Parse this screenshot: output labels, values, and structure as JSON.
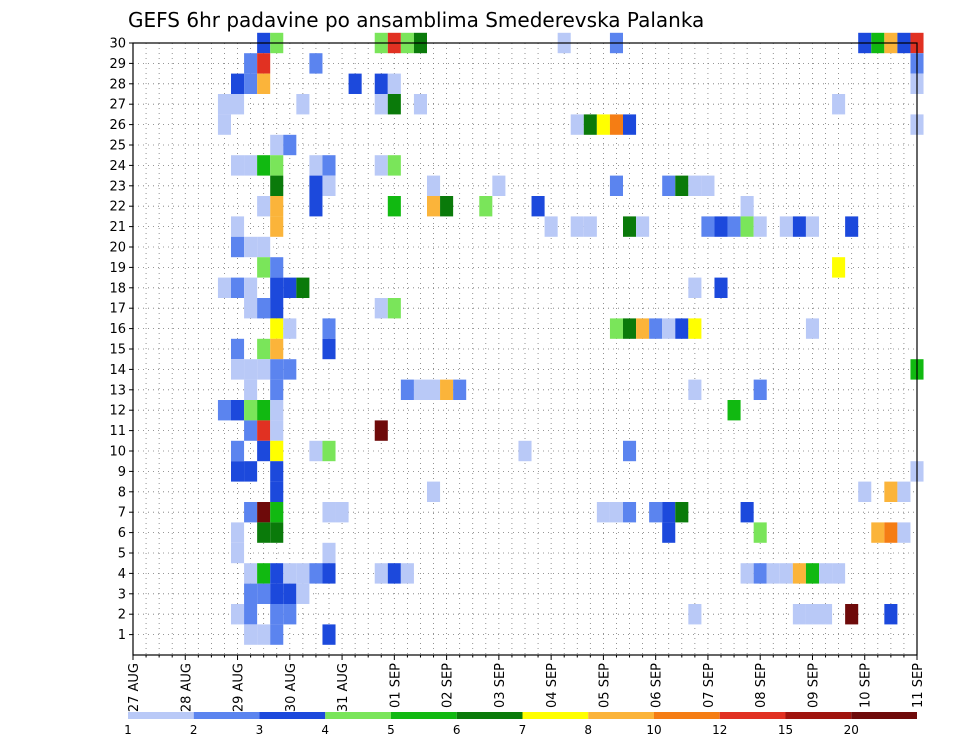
{
  "chart_data": {
    "type": "heatmap",
    "title": "GEFS 6hr padavine po ansamblima Smederevska Palanka",
    "xlabel": "",
    "ylabel": "",
    "x_tick_labels": [
      "27 AUG",
      "28 AUG",
      "29 AUG",
      "30 AUG",
      "31 AUG",
      "01 SEP",
      "02 SEP",
      "03 SEP",
      "04 SEP",
      "05 SEP",
      "06 SEP",
      "07 SEP",
      "08 SEP",
      "09 SEP",
      "10 SEP",
      "11 SEP"
    ],
    "x_unit": "6-hour step (4 per day), day 0 = 27 AUG",
    "y_tick_labels": [
      "1",
      "2",
      "3",
      "4",
      "5",
      "6",
      "7",
      "8",
      "9",
      "10",
      "11",
      "12",
      "13",
      "14",
      "15",
      "16",
      "17",
      "18",
      "19",
      "20",
      "21",
      "22",
      "23",
      "24",
      "25",
      "26",
      "27",
      "28",
      "29",
      "30"
    ],
    "y_range": [
      0,
      30
    ],
    "x_range": [
      0,
      60
    ],
    "grid": true,
    "colorbar": {
      "labels": [
        "1",
        "2",
        "3",
        "4",
        "5",
        "6",
        "7",
        "8",
        "10",
        "12",
        "15",
        "20"
      ],
      "colors": [
        "#b9c9f7",
        "#5b84ef",
        "#1c49dc",
        "#7ae55a",
        "#11b911",
        "#0a7a0a",
        "#ffff00",
        "#fbb43a",
        "#f57d14",
        "#e13122",
        "#a0140e",
        "#6e0a0a"
      ]
    },
    "cells_format": "[member, step, color_index] where step = 6-hour interval from 27 AUG 00UTC and color_index indexes colorbar.colors",
    "cells": [
      [
        30,
        10,
        2
      ],
      [
        30,
        11,
        3
      ],
      [
        30,
        19,
        3
      ],
      [
        30,
        20,
        9
      ],
      [
        30,
        21,
        3
      ],
      [
        30,
        22,
        5
      ],
      [
        30,
        33,
        0
      ],
      [
        30,
        37,
        1
      ],
      [
        30,
        56,
        2
      ],
      [
        30,
        57,
        4
      ],
      [
        30,
        58,
        7
      ],
      [
        30,
        59,
        2
      ],
      [
        30,
        60,
        9
      ],
      [
        29,
        9,
        1
      ],
      [
        29,
        10,
        9
      ],
      [
        29,
        14,
        1
      ],
      [
        29,
        60,
        1
      ],
      [
        28,
        8,
        2
      ],
      [
        28,
        9,
        1
      ],
      [
        28,
        10,
        7
      ],
      [
        28,
        17,
        2
      ],
      [
        28,
        19,
        2
      ],
      [
        28,
        20,
        0
      ],
      [
        28,
        60,
        0
      ],
      [
        27,
        7,
        0
      ],
      [
        27,
        8,
        0
      ],
      [
        27,
        13,
        0
      ],
      [
        27,
        19,
        0
      ],
      [
        27,
        20,
        5
      ],
      [
        27,
        22,
        0
      ],
      [
        27,
        54,
        0
      ],
      [
        26,
        7,
        0
      ],
      [
        26,
        34,
        0
      ],
      [
        26,
        35,
        5
      ],
      [
        26,
        36,
        6
      ],
      [
        26,
        37,
        8
      ],
      [
        26,
        38,
        2
      ],
      [
        26,
        60,
        0
      ],
      [
        25,
        11,
        0
      ],
      [
        25,
        12,
        1
      ],
      [
        24,
        8,
        0
      ],
      [
        24,
        9,
        0
      ],
      [
        24,
        10,
        4
      ],
      [
        24,
        11,
        3
      ],
      [
        24,
        14,
        0
      ],
      [
        24,
        15,
        1
      ],
      [
        24,
        19,
        0
      ],
      [
        24,
        20,
        3
      ],
      [
        23,
        11,
        5
      ],
      [
        23,
        14,
        2
      ],
      [
        23,
        15,
        0
      ],
      [
        23,
        23,
        0
      ],
      [
        23,
        28,
        0
      ],
      [
        23,
        37,
        1
      ],
      [
        23,
        41,
        1
      ],
      [
        23,
        42,
        5
      ],
      [
        23,
        43,
        0
      ],
      [
        23,
        44,
        0
      ],
      [
        22,
        10,
        0
      ],
      [
        22,
        11,
        7
      ],
      [
        22,
        14,
        2
      ],
      [
        22,
        20,
        4
      ],
      [
        22,
        23,
        7
      ],
      [
        22,
        24,
        5
      ],
      [
        22,
        27,
        3
      ],
      [
        22,
        31,
        2
      ],
      [
        22,
        47,
        0
      ],
      [
        21,
        8,
        0
      ],
      [
        21,
        11,
        7
      ],
      [
        21,
        32,
        0
      ],
      [
        21,
        34,
        0
      ],
      [
        21,
        35,
        0
      ],
      [
        21,
        38,
        5
      ],
      [
        21,
        39,
        0
      ],
      [
        21,
        44,
        1
      ],
      [
        21,
        45,
        2
      ],
      [
        21,
        46,
        1
      ],
      [
        21,
        47,
        3
      ],
      [
        21,
        48,
        0
      ],
      [
        21,
        50,
        0
      ],
      [
        21,
        51,
        2
      ],
      [
        21,
        52,
        0
      ],
      [
        21,
        55,
        2
      ],
      [
        20,
        8,
        1
      ],
      [
        20,
        9,
        0
      ],
      [
        20,
        10,
        0
      ],
      [
        19,
        10,
        3
      ],
      [
        19,
        11,
        1
      ],
      [
        19,
        54,
        6
      ],
      [
        18,
        7,
        0
      ],
      [
        18,
        8,
        1
      ],
      [
        18,
        9,
        0
      ],
      [
        18,
        11,
        2
      ],
      [
        18,
        12,
        2
      ],
      [
        18,
        13,
        5
      ],
      [
        18,
        43,
        0
      ],
      [
        18,
        45,
        2
      ],
      [
        17,
        9,
        0
      ],
      [
        17,
        10,
        1
      ],
      [
        17,
        11,
        2
      ],
      [
        17,
        19,
        0
      ],
      [
        17,
        20,
        3
      ],
      [
        16,
        11,
        6
      ],
      [
        16,
        12,
        0
      ],
      [
        16,
        15,
        1
      ],
      [
        16,
        37,
        3
      ],
      [
        16,
        38,
        5
      ],
      [
        16,
        39,
        7
      ],
      [
        16,
        40,
        1
      ],
      [
        16,
        41,
        0
      ],
      [
        16,
        42,
        2
      ],
      [
        16,
        43,
        6
      ],
      [
        16,
        52,
        0
      ],
      [
        15,
        8,
        1
      ],
      [
        15,
        10,
        3
      ],
      [
        15,
        11,
        7
      ],
      [
        15,
        15,
        2
      ],
      [
        14,
        8,
        0
      ],
      [
        14,
        9,
        0
      ],
      [
        14,
        10,
        0
      ],
      [
        14,
        11,
        1
      ],
      [
        14,
        12,
        1
      ],
      [
        14,
        60,
        4
      ],
      [
        13,
        9,
        0
      ],
      [
        13,
        11,
        1
      ],
      [
        13,
        21,
        1
      ],
      [
        13,
        22,
        0
      ],
      [
        13,
        23,
        0
      ],
      [
        13,
        24,
        7
      ],
      [
        13,
        25,
        1
      ],
      [
        13,
        43,
        0
      ],
      [
        13,
        48,
        1
      ],
      [
        12,
        7,
        1
      ],
      [
        12,
        8,
        2
      ],
      [
        12,
        9,
        3
      ],
      [
        12,
        10,
        4
      ],
      [
        12,
        11,
        0
      ],
      [
        12,
        46,
        4
      ],
      [
        11,
        9,
        1
      ],
      [
        11,
        10,
        9
      ],
      [
        11,
        11,
        0
      ],
      [
        11,
        19,
        11
      ],
      [
        10,
        8,
        1
      ],
      [
        10,
        10,
        2
      ],
      [
        10,
        11,
        6
      ],
      [
        10,
        14,
        0
      ],
      [
        10,
        15,
        3
      ],
      [
        10,
        30,
        0
      ],
      [
        10,
        38,
        1
      ],
      [
        9,
        8,
        2
      ],
      [
        9,
        9,
        2
      ],
      [
        9,
        11,
        2
      ],
      [
        9,
        60,
        0
      ],
      [
        8,
        11,
        2
      ],
      [
        8,
        23,
        0
      ],
      [
        8,
        56,
        0
      ],
      [
        8,
        58,
        7
      ],
      [
        8,
        59,
        0
      ],
      [
        7,
        9,
        1
      ],
      [
        7,
        10,
        11
      ],
      [
        7,
        11,
        4
      ],
      [
        7,
        15,
        0
      ],
      [
        7,
        16,
        0
      ],
      [
        7,
        36,
        0
      ],
      [
        7,
        37,
        0
      ],
      [
        7,
        38,
        1
      ],
      [
        7,
        40,
        1
      ],
      [
        7,
        41,
        2
      ],
      [
        7,
        42,
        5
      ],
      [
        7,
        47,
        2
      ],
      [
        6,
        8,
        0
      ],
      [
        6,
        10,
        5
      ],
      [
        6,
        11,
        5
      ],
      [
        6,
        41,
        2
      ],
      [
        6,
        48,
        3
      ],
      [
        6,
        57,
        7
      ],
      [
        6,
        58,
        8
      ],
      [
        6,
        59,
        0
      ],
      [
        5,
        8,
        0
      ],
      [
        5,
        15,
        0
      ],
      [
        4,
        9,
        0
      ],
      [
        4,
        10,
        4
      ],
      [
        4,
        11,
        2
      ],
      [
        4,
        12,
        0
      ],
      [
        4,
        13,
        0
      ],
      [
        4,
        14,
        1
      ],
      [
        4,
        15,
        2
      ],
      [
        4,
        19,
        0
      ],
      [
        4,
        20,
        2
      ],
      [
        4,
        21,
        0
      ],
      [
        4,
        47,
        0
      ],
      [
        4,
        48,
        1
      ],
      [
        4,
        49,
        0
      ],
      [
        4,
        50,
        0
      ],
      [
        4,
        51,
        7
      ],
      [
        4,
        52,
        4
      ],
      [
        4,
        53,
        0
      ],
      [
        4,
        54,
        0
      ],
      [
        3,
        9,
        1
      ],
      [
        3,
        10,
        1
      ],
      [
        3,
        11,
        2
      ],
      [
        3,
        12,
        2
      ],
      [
        3,
        13,
        0
      ],
      [
        2,
        8,
        0
      ],
      [
        2,
        9,
        1
      ],
      [
        2,
        11,
        1
      ],
      [
        2,
        12,
        1
      ],
      [
        2,
        43,
        0
      ],
      [
        2,
        51,
        0
      ],
      [
        2,
        52,
        0
      ],
      [
        2,
        53,
        0
      ],
      [
        2,
        55,
        11
      ],
      [
        2,
        58,
        2
      ],
      [
        1,
        9,
        0
      ],
      [
        1,
        10,
        0
      ],
      [
        1,
        11,
        1
      ],
      [
        1,
        15,
        2
      ]
    ]
  }
}
